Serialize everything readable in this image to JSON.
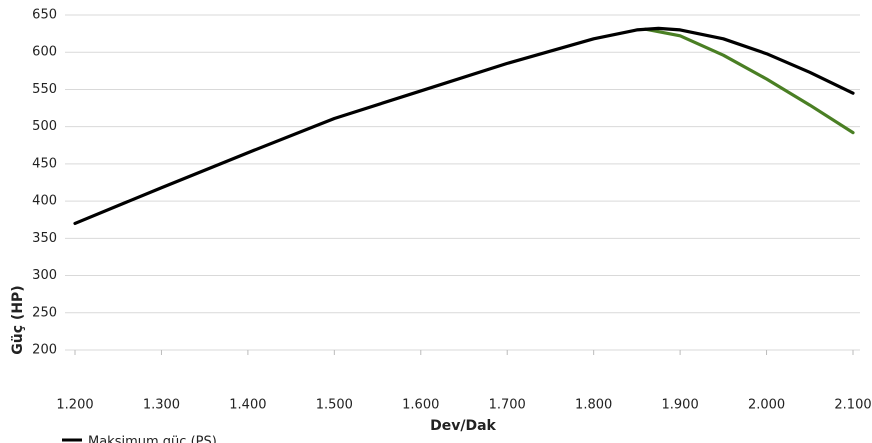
{
  "chart_data": {
    "type": "line",
    "x_label": "Dev/Dak",
    "y_label": "Güç (HP)",
    "series": [
      {
        "color": "#4a7f24",
        "x": [
          1860,
          1900,
          1950,
          2000,
          2050,
          2100
        ],
        "values": [
          631,
          622,
          596,
          564,
          529,
          492
        ]
      },
      {
        "name": "Maksimum güç (PS)",
        "color": "#000000",
        "x": [
          1200,
          1300,
          1400,
          1500,
          1600,
          1700,
          1800,
          1850,
          1875,
          1900,
          1950,
          2000,
          2050,
          2100
        ],
        "values": [
          370,
          418,
          465,
          511,
          548,
          585,
          618,
          630,
          632,
          630,
          618,
          598,
          573,
          545
        ]
      }
    ],
    "xlim": [
      1200,
      2100
    ],
    "xticks": [
      {
        "value": 1200,
        "label": "1.200"
      },
      {
        "value": 1300,
        "label": "1.300"
      },
      {
        "value": 1400,
        "label": "1.400"
      },
      {
        "value": 1500,
        "label": "1.500"
      },
      {
        "value": 1600,
        "label": "1.600"
      },
      {
        "value": 1700,
        "label": "1.700"
      },
      {
        "value": 1800,
        "label": "1.800"
      },
      {
        "value": 1900,
        "label": "1.900"
      },
      {
        "value": 2000,
        "label": "2.000"
      },
      {
        "value": 2100,
        "label": "2.100"
      }
    ],
    "ylim": [
      200,
      650
    ],
    "yticks": [
      200,
      250,
      300,
      350,
      400,
      450,
      500,
      550,
      600,
      650
    ],
    "grid": true,
    "legend": "bottom"
  }
}
